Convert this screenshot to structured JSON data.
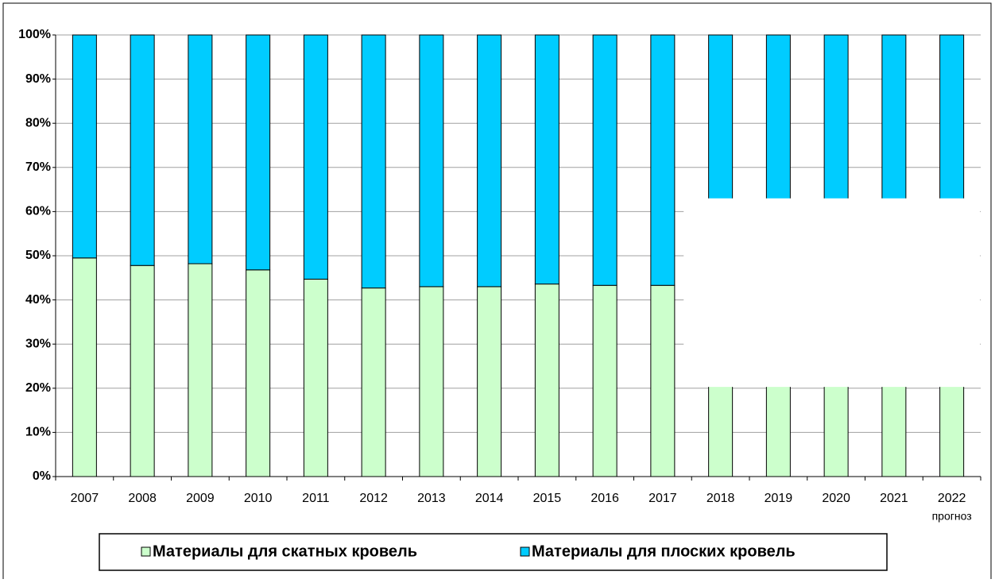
{
  "chart_data": {
    "type": "stacked_bar",
    "categories": [
      "2007",
      "2008",
      "2009",
      "2010",
      "2011",
      "2012",
      "2013",
      "2014",
      "2015",
      "2016",
      "2017",
      "2018",
      "2019",
      "2020",
      "2021",
      "2022"
    ],
    "annotations": [
      "прогноз"
    ],
    "series": [
      {
        "name": "Материалы для скатных кровель",
        "color": "#ccffcc",
        "values": [
          49.5,
          47.8,
          48.2,
          46.8,
          44.7,
          42.7,
          43.0,
          43.0,
          43.6,
          43.3,
          43.3,
          42.5,
          42.5,
          42.5,
          42.5,
          42.5
        ]
      },
      {
        "name": "Материалы для плоских кровель",
        "color": "#00ccff",
        "values": [
          50.5,
          52.2,
          51.8,
          53.2,
          55.3,
          57.3,
          57.0,
          57.0,
          56.4,
          56.7,
          56.7,
          57.5,
          57.5,
          57.5,
          57.5,
          57.5
        ]
      }
    ],
    "ylim": [
      0,
      100
    ],
    "yticks": [
      {
        "value": 0,
        "label": "0%"
      },
      {
        "value": 10,
        "label": "10%"
      },
      {
        "value": 20,
        "label": "20%"
      },
      {
        "value": 30,
        "label": "30%"
      },
      {
        "value": 40,
        "label": "40%"
      },
      {
        "value": 50,
        "label": "50%"
      },
      {
        "value": 60,
        "label": "60%"
      },
      {
        "value": 70,
        "label": "70%"
      },
      {
        "value": 80,
        "label": "80%"
      },
      {
        "value": 90,
        "label": "90%"
      },
      {
        "value": 100,
        "label": "100%"
      }
    ],
    "grid": true
  }
}
